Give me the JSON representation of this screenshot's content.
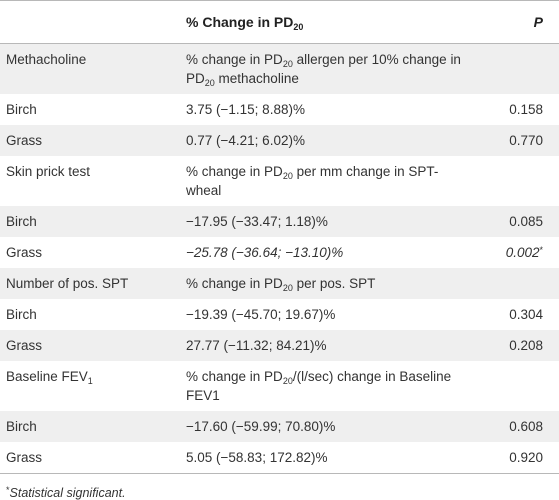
{
  "header": {
    "col1": "",
    "col2_prefix": "% Change in PD",
    "col2_sub": "20",
    "col3": "P"
  },
  "rows": {
    "r0": {
      "label": "Methacholine",
      "v1": "% change in PD",
      "v1s": "20",
      "v2": " allergen per 10% change in PD",
      "v2s": "20",
      "v3": " methacholine",
      "p": ""
    },
    "r1": {
      "label": "Birch",
      "val": "3.75 (−1.15; 8.88)%",
      "p": "0.158"
    },
    "r2": {
      "label": "Grass",
      "val": "0.77 (−4.21; 6.02)%",
      "p": "0.770"
    },
    "r3": {
      "label": "Skin prick test",
      "v1": "% change in PD",
      "v1s": "20",
      "v2": " per mm change in SPT-wheal",
      "p": ""
    },
    "r4": {
      "label": "Birch",
      "val": "−17.95 (−33.47; 1.18)%",
      "p": "0.085"
    },
    "r5": {
      "label": "Grass",
      "val": "−25.78 (−36.64; −13.10)%",
      "p": "0.002",
      "p_mark": "*"
    },
    "r6": {
      "label": "Number of pos. SPT",
      "v1": "% change in PD",
      "v1s": "20",
      "v2": " per pos. SPT",
      "p": ""
    },
    "r7": {
      "label": "Birch",
      "val": "−19.39 (−45.70; 19.67)%",
      "p": "0.304"
    },
    "r8": {
      "label": "Grass",
      "val": "27.77 (−11.32; 84.21)%",
      "p": "0.208"
    },
    "r9": {
      "label": "Baseline FEV",
      "labels": "1",
      "v1": "% change in PD",
      "v1s": "20",
      "v2": "/(l/sec) change in Baseline FEV1",
      "p": ""
    },
    "r10": {
      "label": "Birch",
      "val": "−17.60 (−59.99; 70.80)%",
      "p": "0.608"
    },
    "r11": {
      "label": "Grass",
      "val": "5.05 (−58.83; 172.82)%",
      "p": "0.920"
    }
  },
  "footnote": {
    "mark": "*",
    "text": "Statistical significant."
  }
}
